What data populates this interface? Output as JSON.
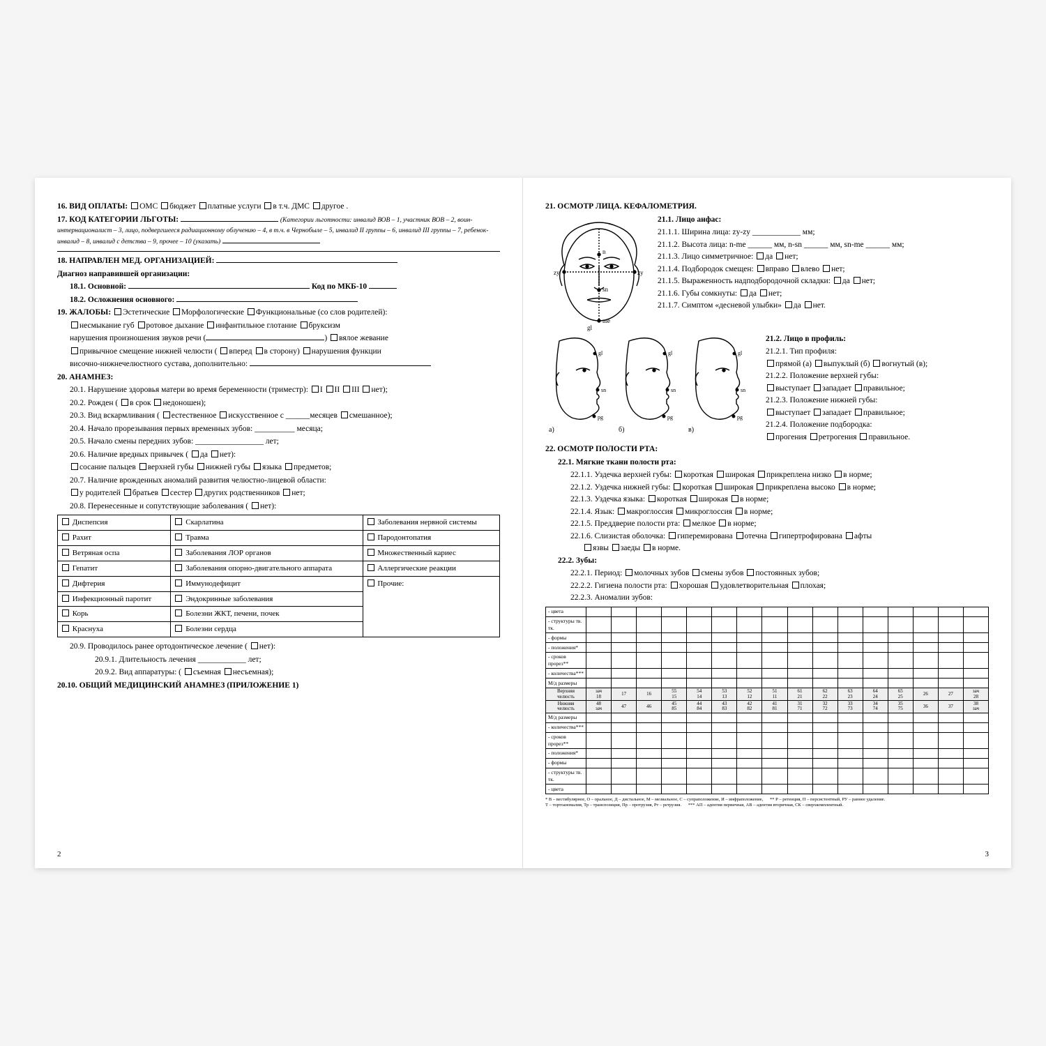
{
  "left": {
    "s16": {
      "title": "16. ВИД ОПЛАТЫ:",
      "opts": [
        "ОМС",
        "бюджет",
        "платные услуги",
        "в т.ч. ДМС",
        "другое ."
      ]
    },
    "s17": {
      "title": "17. КОД КАТЕГОРИИ ЛЬГОТЫ:",
      "note": "(Категории льготности: инвалид ВОВ – 1, участник ВОВ – 2, воин-интернационалист – 3, лицо, подвергшееся радиационному облучению – 4, в т.ч. в Чернобыле – 5, инвалид II группы – 6, инвалид III группы – 7, ребенок-инвалид – 8, инвалид с детства – 9, прочее – 10 (указать)"
    },
    "s18": {
      "title": "18. НАПРАВЛЕН МЕД. ОРГАНИЗАЦИЕЙ:",
      "diag": "Диагноз направившей организации:",
      "a": "18.1. Основной:",
      "code": "Код по МКБ-10",
      "b": "18.2. Осложнения основного:"
    },
    "s19": {
      "title": "19. ЖАЛОБЫ:",
      "main": [
        "Эстетические",
        "Морфологические",
        "Функциональные (со слов родителей):"
      ],
      "line1": [
        "несмыкание губ",
        "ротовое дыхание",
        "инфантильное глотание",
        "бруксизм"
      ],
      "line2a": "нарушения произношения звуков речи (",
      "line2b": "вялое жевание",
      "line3a": "привычное смещение нижней челюсти (",
      "line3o": [
        "вперед",
        "в сторону)"
      ],
      "line3b": "нарушения функции",
      "line4": "височно-нижнечелюстного сустава,  дополнительно:"
    },
    "s20": {
      "title": "20. АНАМНЕЗ:",
      "p1": "20.1. Нарушение здоровья матери во время беременности (триместр):",
      "p1o": [
        "I",
        "II",
        "III",
        "нет);"
      ],
      "p2": "20.2. Рожден (",
      "p2o": [
        "в срок",
        "недоношен);"
      ],
      "p3": "20.3. Вид вскармливания (",
      "p3o": [
        "естественное",
        "искусственное с ______месяцев",
        "смешанное);"
      ],
      "p4": "20.4. Начало прорезывания первых временных зубов: __________ месяца;",
      "p5": "20.5. Начало смены передних зубов: _________________ лет;",
      "p6": "20.6. Наличие вредных привычек (",
      "p6o": [
        "да",
        "нет):"
      ],
      "p6b": [
        "сосание пальцев",
        "верхней губы",
        "нижней губы",
        "языка",
        "предметов;"
      ],
      "p7": "20.7. Наличие врожденных аномалий развития челюстно-лицевой области:",
      "p7b": [
        "у родителей",
        "братьев",
        "сестер",
        "других родственников",
        "нет;"
      ],
      "p8": "20.8. Перенесенные и сопутствующие заболевания (",
      "p8o": "нет):"
    },
    "disease": {
      "col1": [
        "Диспепсия",
        "Рахит",
        "Ветряная оспа",
        "Гепатит",
        "Дифтерия",
        "Инфекционный паротит",
        "Корь",
        "Краснуха"
      ],
      "col2": [
        "Скарлатина",
        "Травма",
        "Заболевания ЛОР органов",
        "Заболевания опорно-двигательного аппарата",
        "Иммунодефицит",
        "Эндокринные заболевания",
        "Болезни ЖКТ, печени, почек",
        "Болезни сердца"
      ],
      "col3": [
        "Заболевания нервной системы",
        "Пародонтопатия",
        "Множественный кариес",
        "Аллергические реакции",
        "Прочие:"
      ]
    },
    "s20_9": {
      "a": "20.9. Проводилось ранее ортодонтическое лечение (",
      "ao": "нет):",
      "b": "20.9.1. Длительность лечения ____________ лет;",
      "c": "20.9.2. Вид аппаратуры: (",
      "co": [
        "съемная",
        "несъемная);"
      ]
    },
    "s20_10": "20.10. ОБЩИЙ МЕДИЦИНСКИЙ АНАМНЕЗ (ПРИЛОЖЕНИЕ 1)",
    "page": "2"
  },
  "right": {
    "s21": "21. ОСМОТР ЛИЦА. КЕФАЛОМЕТРИЯ.",
    "s21_1": "21.1. Лицо анфас:",
    "a1": "21.1.1.  Ширина лица: zy-zy ____________ мм;",
    "a2": "21.1.2. Высота лица: n-me ______ мм, n-sn ______ мм, sn-me ______ мм;",
    "a3": "21.1.3. Лицо симметричное:",
    "a3o": [
      "да",
      "нет;"
    ],
    "a4": "21.1.4. Подбородок смещен:",
    "a4o": [
      "вправо",
      "влево",
      "нет;"
    ],
    "a5": "21.1.5. Выраженность надподбородочной складки:",
    "a5o": [
      "да",
      "нет;"
    ],
    "a6": "21.1.6. Губы сомкнуты:",
    "a6o": [
      "да",
      "нет;"
    ],
    "a7": "21.1.7. Симптом «десневой улыбки»",
    "a7o": [
      "да",
      "нет."
    ],
    "s21_2": "21.2. Лицо в профиль:",
    "b1": "21.2.1.  Тип профиля:",
    "b1o": [
      "прямой (а)",
      "выпуклый (б)",
      "вогнутый (в);"
    ],
    "b2": "21.2.2. Положение верхней губы:",
    "b2o": [
      "выступает",
      "западает",
      "правильное;"
    ],
    "b3": "21.2.3. Положение нижней губы:",
    "b3o": [
      "выступает",
      "западает",
      "правильное;"
    ],
    "b4": "21.2.4. Положение подбородка:",
    "b4o": [
      "прогения",
      "ретрогения",
      "правильное."
    ],
    "prof_labels": [
      "а)",
      "б)",
      "в)"
    ],
    "s22": "22. ОСМОТР ПОЛОСТИ РТА:",
    "s22_1": "22.1. Мягкие ткани полости рта:",
    "c1": "22.1.1. Уздечка верхней губы:",
    "c1o": [
      "короткая",
      "широкая",
      "прикреплена низко",
      "в норме;"
    ],
    "c2": "22.1.2. Уздечка нижней губы:",
    "c2o": [
      "короткая",
      "широкая",
      "прикреплена высоко",
      "в норме;"
    ],
    "c3": "22.1.3. Уздечка языка:",
    "c3o": [
      "короткая",
      "широкая",
      "в норме;"
    ],
    "c4": "22.1.4. Язык:",
    "c4o": [
      "макроглоссия",
      "микроглоссия",
      "в норме;"
    ],
    "c5": "22.1.5. Преддверие полости рта:",
    "c5o": [
      "мелкое",
      "в норме;"
    ],
    "c6": "22.1.6. Слизистая оболочка:",
    "c6o": [
      "гиперемирована",
      "отечна",
      "гипертрофирована",
      "афты",
      "язвы",
      "заеды",
      "в норме."
    ],
    "s22_2": "22.2. Зубы:",
    "d1": "22.2.1. Период:",
    "d1o": [
      "молочных зубов",
      "смены зубов",
      "постоянных зубов;"
    ],
    "d2": "22.2.2. Гигиена полости рта:",
    "d2o": [
      "хорошая",
      "удовлетворительная",
      "плохая;"
    ],
    "d3": "22.2.3. Аномалии зубов:",
    "tooth_rows": [
      "- цвета",
      "- структуры тв. тк.",
      "- формы",
      "- положения*",
      "- сроков прорез**",
      "- количества***",
      "М/д размеры"
    ],
    "jaw1": "Верхняя челюсть",
    "jaw2": "Нижняя челюсть",
    "upper": [
      "зач\n18",
      "17",
      "16",
      "55\n15",
      "54\n14",
      "53\n13",
      "52\n12",
      "51\n11",
      "61\n21",
      "62\n22",
      "63\n23",
      "64\n24",
      "65\n25",
      "26",
      "27",
      "зач\n28"
    ],
    "lower": [
      "48\nзач",
      "47",
      "46",
      "45\n85",
      "44\n84",
      "43\n83",
      "42\n82",
      "41\n81",
      "31\n71",
      "32\n72",
      "33\n73",
      "34\n74",
      "35\n75",
      "36",
      "37",
      "38\nзач"
    ],
    "tooth_rows2": [
      "- количества***",
      "- сроков прорез**",
      "- положения*",
      "- формы",
      "- структуры тв. тк.",
      "- цвета"
    ],
    "foot1": "* В – вестибулярное, О – оральное, Д – дистальное, М – мезиальное, С – супраположение, И – инфраположение,",
    "foot2": "Т – тортоаномалия, Тр – транспозиция, Пр – протрузия, Рт – ретрузия.",
    "foot3": "** Р – ретенция, П – персистентный, РУ – раннее удаление.",
    "foot4": "*** АП – адентия первичная, АВ – адентия вторичная, СК – сверхкомплектный.",
    "page": "3"
  }
}
